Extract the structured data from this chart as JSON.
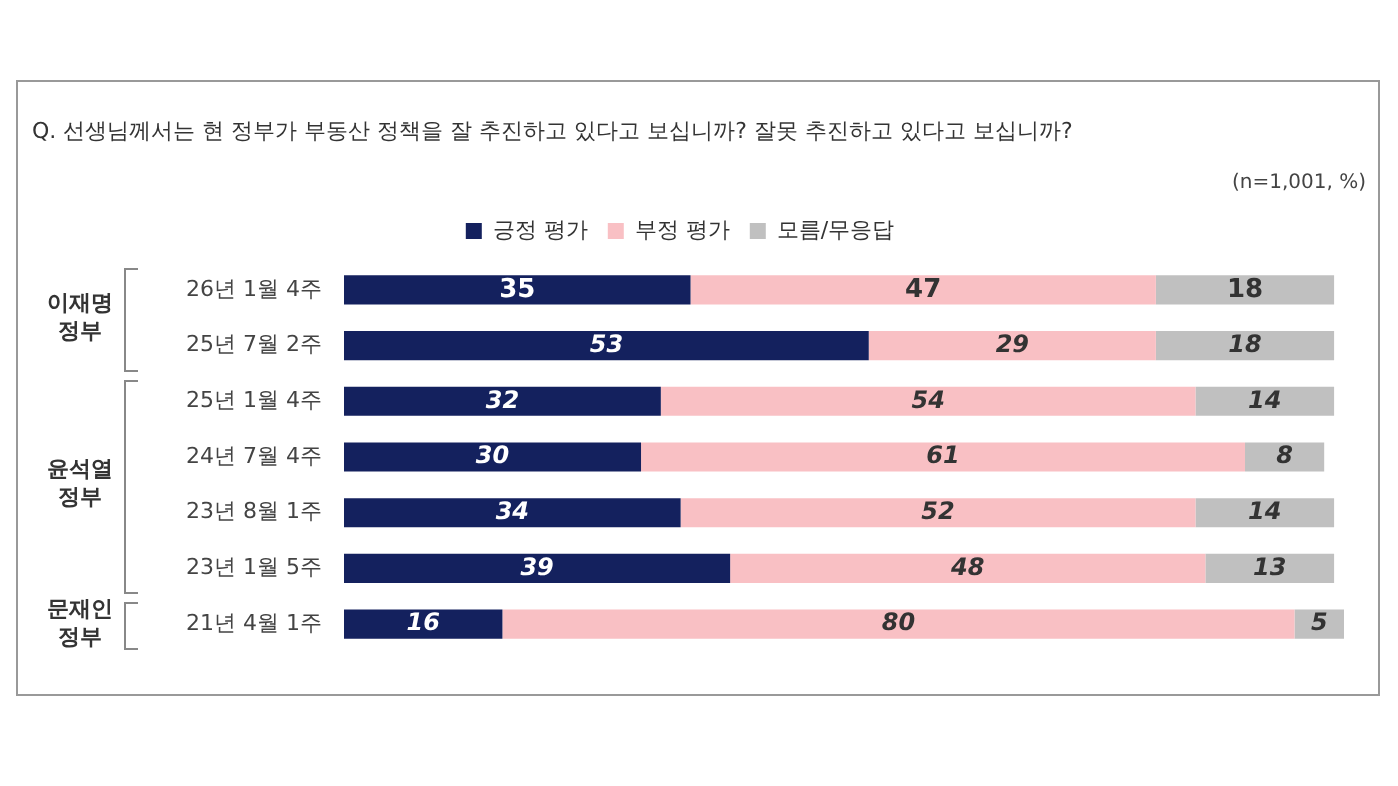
{
  "chart_data": {
    "type": "bar",
    "orientation": "horizontal",
    "stacked": true,
    "title": "Q. 선생님께서는 현 정부가 부동산 정책을 잘 추진하고 있다고 보십니까? 잘못 추진하고 있다고 보십니까?",
    "categories": [
      "26년 1월 4주",
      "25년 7월 2주",
      "25년 1월 4주",
      "24년 7월 4주",
      "23년 8월 1주",
      "23년 1월 5주",
      "21년 4월 1주"
    ],
    "series": [
      {
        "name": "긍정 평가",
        "color": "#14215e",
        "values": [
          35,
          53,
          32,
          30,
          34,
          39,
          16
        ]
      },
      {
        "name": "부정 평가",
        "color": "#f9c0c4",
        "values": [
          47,
          29,
          54,
          61,
          52,
          48,
          80
        ]
      },
      {
        "name": "모름/무응답",
        "color": "#c0c0c0",
        "values": [
          18,
          18,
          14,
          8,
          14,
          13,
          5
        ]
      }
    ],
    "xlim": [
      0,
      101
    ],
    "tick_labels": "y",
    "legend": "top",
    "data_labels": true,
    "annotations": [
      "(n=1,001, %)",
      "이재명 정부",
      "윤석열 정부",
      "문재인 정부"
    ]
  }
}
